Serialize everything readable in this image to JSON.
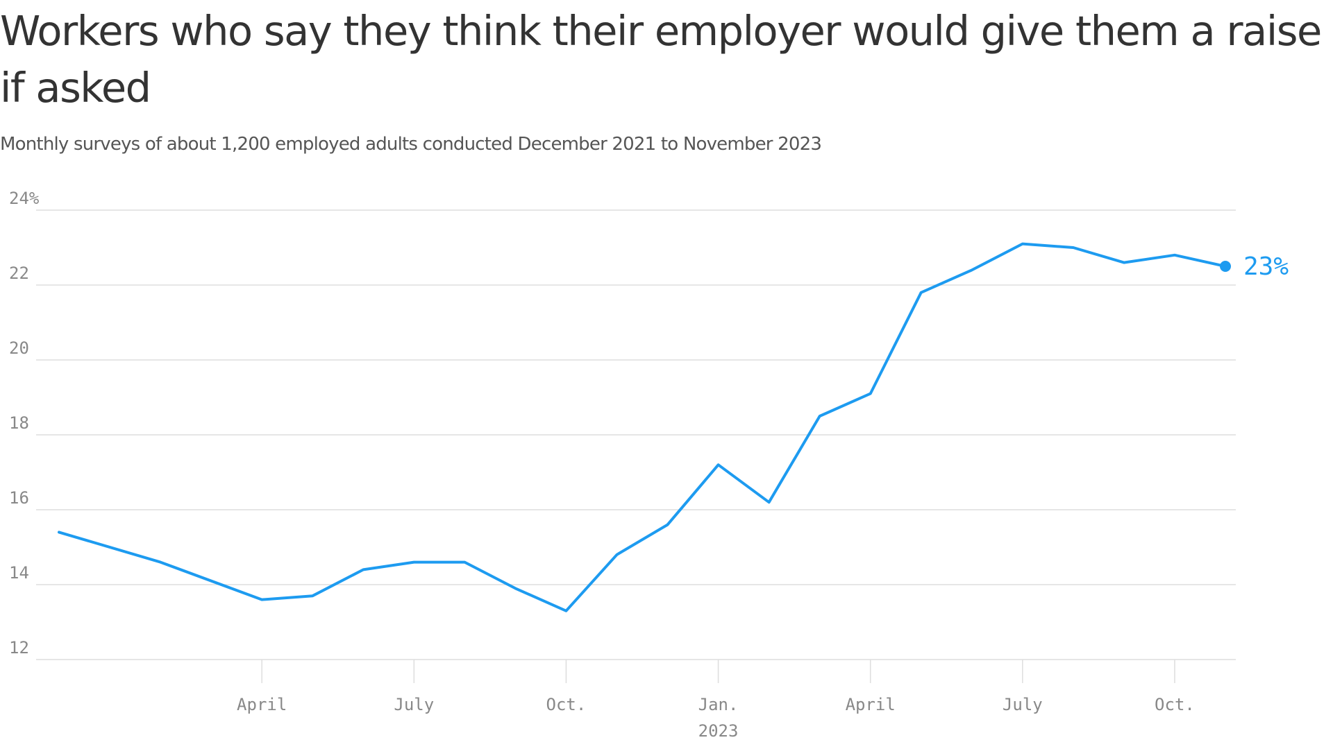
{
  "title": "Workers who say they think their employer would give them a raise if asked",
  "subtitle": "Monthly surveys of about 1,200 employed adults conducted December 2021 to November 2023",
  "colors": {
    "line": "#1d9bf0",
    "grid": "#dddddd",
    "axis_text": "#888888",
    "title": "#333333"
  },
  "chart_data": {
    "type": "line",
    "ylim": [
      12,
      24
    ],
    "y_ticks": [
      {
        "value": 24,
        "label": "24%"
      },
      {
        "value": 22,
        "label": "22"
      },
      {
        "value": 20,
        "label": "20"
      },
      {
        "value": 18,
        "label": "18"
      },
      {
        "value": 16,
        "label": "16"
      },
      {
        "value": 14,
        "label": "14"
      },
      {
        "value": 12,
        "label": "12"
      }
    ],
    "x_ticks": [
      {
        "value": "2022-04",
        "label": "April"
      },
      {
        "value": "2022-07",
        "label": "July"
      },
      {
        "value": "2022-10",
        "label": "Oct."
      },
      {
        "value": "2023-01",
        "label": "Jan.",
        "sublabel": "2023"
      },
      {
        "value": "2023-04",
        "label": "April"
      },
      {
        "value": "2023-07",
        "label": "July"
      },
      {
        "value": "2023-10",
        "label": "Oct."
      }
    ],
    "xlim": [
      "2021-12",
      "2023-11"
    ],
    "grid": true,
    "series": [
      {
        "points": [
          {
            "x": "2021-12",
            "y": 15.4
          },
          {
            "x": "2022-02",
            "y": 14.6
          },
          {
            "x": "2022-04",
            "y": 13.6
          },
          {
            "x": "2022-05",
            "y": 13.7
          },
          {
            "x": "2022-06",
            "y": 14.4
          },
          {
            "x": "2022-07",
            "y": 14.6
          },
          {
            "x": "2022-08",
            "y": 14.6
          },
          {
            "x": "2022-09",
            "y": 13.9
          },
          {
            "x": "2022-10",
            "y": 13.3
          },
          {
            "x": "2022-11",
            "y": 14.8
          },
          {
            "x": "2022-12",
            "y": 15.6
          },
          {
            "x": "2023-01",
            "y": 17.2
          },
          {
            "x": "2023-02",
            "y": 16.2
          },
          {
            "x": "2023-03",
            "y": 18.5
          },
          {
            "x": "2023-04",
            "y": 19.1
          },
          {
            "x": "2023-05",
            "y": 21.8
          },
          {
            "x": "2023-06",
            "y": 22.4
          },
          {
            "x": "2023-07",
            "y": 23.1
          },
          {
            "x": "2023-08",
            "y": 23.0
          },
          {
            "x": "2023-09",
            "y": 22.6
          },
          {
            "x": "2023-10",
            "y": 22.8
          },
          {
            "x": "2023-11",
            "y": 22.5
          }
        ],
        "end_label": "23%"
      }
    ]
  }
}
